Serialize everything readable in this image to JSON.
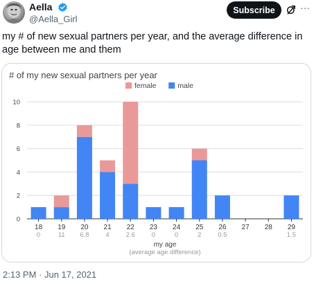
{
  "tweet": {
    "author": {
      "display_name": "Aella",
      "handle": "@Aella_Girl",
      "verified": true,
      "avatar_icon": "avatar-image"
    },
    "actions": {
      "subscribe_label": "Subscribe",
      "grok_icon": "grok-icon",
      "more_icon": "more-options-icon"
    },
    "text": "my # of new sexual partners per year, and the average difference in age between me and them",
    "timestamp": "2:13 PM · Jun 17, 2021",
    "colors": {
      "verified_blue": "#1d9bf0",
      "button_bg": "#0f1419"
    }
  },
  "chart_data": {
    "type": "bar",
    "stacked": true,
    "title": "# of my new sexual partners per year",
    "xlabel": "my age",
    "xlabel_sub": "(average age difference)",
    "ylabel": "",
    "ylim": [
      0,
      10
    ],
    "yticks": [
      0,
      2,
      4,
      6,
      8,
      10
    ],
    "grid": true,
    "legend_position": "top-center",
    "categories": [
      "18",
      "19",
      "20",
      "21",
      "22",
      "23",
      "24",
      "25",
      "26",
      "27",
      "28",
      "29"
    ],
    "sublabels": [
      "0",
      "11",
      "6.8",
      "4",
      "2.6",
      "0",
      "0",
      "2",
      "0.5",
      "",
      "",
      "1.5"
    ],
    "series": [
      {
        "name": "male",
        "color": "#4285f4",
        "values": [
          1,
          1,
          7,
          4,
          3,
          1,
          1,
          5,
          2,
          0,
          0,
          2
        ]
      },
      {
        "name": "female",
        "color": "#ea9999",
        "values": [
          0,
          1,
          1,
          1,
          7,
          0,
          0,
          1,
          0,
          0,
          0,
          0
        ]
      }
    ],
    "legend_order": [
      "female",
      "male"
    ]
  }
}
